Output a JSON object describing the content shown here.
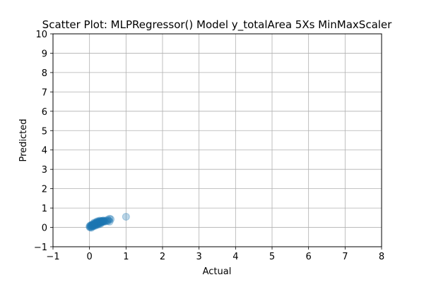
{
  "chart_data": {
    "type": "scatter",
    "title": "Scatter Plot: MLPRegressor() Model y_totalArea 5Xs MinMaxScaler",
    "xlabel": "Actual",
    "ylabel": "Predicted",
    "xlim": [
      -1,
      8
    ],
    "ylim": [
      -1,
      10
    ],
    "xticks": [
      -1,
      0,
      1,
      2,
      3,
      4,
      5,
      6,
      7,
      8
    ],
    "yticks": [
      -1,
      0,
      1,
      2,
      3,
      4,
      5,
      6,
      7,
      8,
      9,
      10
    ],
    "grid": true,
    "legend": "none",
    "marker_color": "#1f77b4",
    "marker_alpha": 0.3,
    "series": [
      {
        "points": [
          [
            0.0,
            0.05
          ],
          [
            0.01,
            0.0
          ],
          [
            0.02,
            0.1
          ],
          [
            0.03,
            0.02
          ],
          [
            0.04,
            0.08
          ],
          [
            0.05,
            0.12
          ],
          [
            0.06,
            0.04
          ],
          [
            0.07,
            0.1
          ],
          [
            0.08,
            0.15
          ],
          [
            0.09,
            0.07
          ],
          [
            0.1,
            0.12
          ],
          [
            0.11,
            0.18
          ],
          [
            0.12,
            0.1
          ],
          [
            0.13,
            0.15
          ],
          [
            0.14,
            0.2
          ],
          [
            0.15,
            0.13
          ],
          [
            0.16,
            0.18
          ],
          [
            0.17,
            0.22
          ],
          [
            0.18,
            0.15
          ],
          [
            0.19,
            0.2
          ],
          [
            0.2,
            0.25
          ],
          [
            0.21,
            0.17
          ],
          [
            0.22,
            0.23
          ],
          [
            0.23,
            0.27
          ],
          [
            0.24,
            0.2
          ],
          [
            0.25,
            0.25
          ],
          [
            0.26,
            0.3
          ],
          [
            0.27,
            0.22
          ],
          [
            0.28,
            0.27
          ],
          [
            0.29,
            0.31
          ],
          [
            0.3,
            0.24
          ],
          [
            0.31,
            0.29
          ],
          [
            0.32,
            0.33
          ],
          [
            0.33,
            0.26
          ],
          [
            0.34,
            0.3
          ],
          [
            0.35,
            0.34
          ],
          [
            0.36,
            0.28
          ],
          [
            0.37,
            0.32
          ],
          [
            0.38,
            0.36
          ],
          [
            0.39,
            0.3
          ],
          [
            0.4,
            0.33
          ],
          [
            0.42,
            0.3
          ],
          [
            0.45,
            0.35
          ],
          [
            0.48,
            0.32
          ],
          [
            0.5,
            0.4
          ],
          [
            0.52,
            0.35
          ],
          [
            0.55,
            0.45
          ],
          [
            0.55,
            0.3
          ],
          [
            0.58,
            0.42
          ],
          [
            1.0,
            0.55
          ],
          [
            0.05,
            -0.02
          ],
          [
            0.1,
            0.05
          ],
          [
            0.15,
            0.08
          ],
          [
            0.2,
            0.12
          ],
          [
            0.25,
            0.15
          ],
          [
            0.3,
            0.18
          ],
          [
            0.22,
            0.32
          ],
          [
            0.28,
            0.35
          ],
          [
            0.18,
            0.28
          ],
          [
            0.12,
            0.24
          ]
        ]
      }
    ]
  }
}
